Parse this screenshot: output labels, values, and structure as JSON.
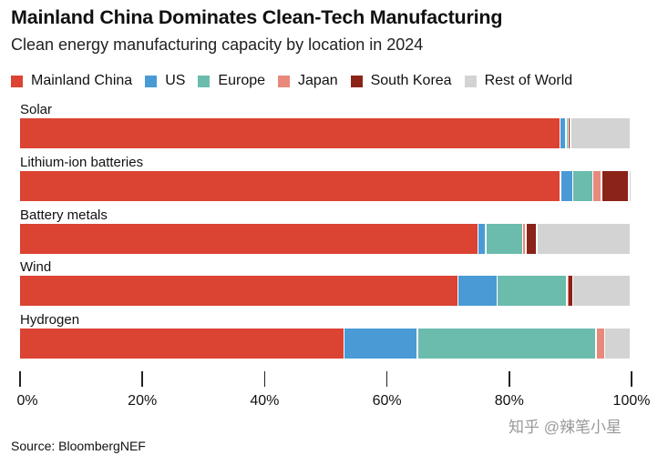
{
  "chart_data": {
    "type": "bar",
    "orientation": "horizontal",
    "stacked": true,
    "title": "Mainland China Dominates Clean-Tech Manufacturing",
    "subtitle": "Clean energy manufacturing capacity by location in 2024",
    "categories": [
      "Solar",
      "Lithium-ion batteries",
      "Battery metals",
      "Wind",
      "Hydrogen"
    ],
    "series": [
      {
        "name": "Mainland China",
        "color": "#db4332",
        "values": [
          88.4,
          88.5,
          75.0,
          71.7,
          53.1
        ]
      },
      {
        "name": "US",
        "color": "#4a9ad6",
        "values": [
          1.0,
          2.0,
          1.3,
          6.4,
          12.0
        ]
      },
      {
        "name": "Europe",
        "color": "#6bbcad",
        "values": [
          0.3,
          3.3,
          6.0,
          11.4,
          29.2
        ]
      },
      {
        "name": "Japan",
        "color": "#e8897c",
        "values": [
          0.0,
          1.4,
          0.5,
          0.2,
          1.4
        ]
      },
      {
        "name": "South Korea",
        "color": "#8b2318",
        "values": [
          0.4,
          4.5,
          1.8,
          0.8,
          0.0
        ]
      },
      {
        "name": "Rest of World",
        "color": "#d3d3d3",
        "values": [
          9.9,
          0.3,
          15.4,
          9.5,
          4.3
        ]
      }
    ],
    "xlim": [
      0,
      100
    ],
    "xticks": [
      "0%",
      "20%",
      "40%",
      "60%",
      "80%",
      "100%"
    ],
    "legend": "top",
    "grid": false
  },
  "source": "Source: BloombergNEF",
  "watermark": "知乎 @辣笔小星"
}
